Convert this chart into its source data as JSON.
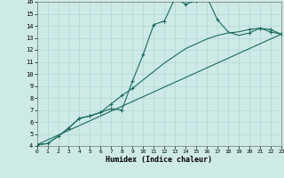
{
  "xlabel": "Humidex (Indice chaleur)",
  "bg_color": "#ceeae6",
  "line_color": "#1a6b5a",
  "xlim": [
    0,
    23
  ],
  "ylim": [
    4,
    16
  ],
  "xticks": [
    0,
    1,
    2,
    3,
    4,
    5,
    6,
    7,
    8,
    9,
    10,
    11,
    12,
    13,
    14,
    15,
    16,
    17,
    18,
    19,
    20,
    21,
    22,
    23
  ],
  "yticks": [
    4,
    5,
    6,
    7,
    8,
    9,
    10,
    11,
    12,
    13,
    14,
    15,
    16
  ],
  "curve1_x": [
    0,
    1,
    2,
    3,
    4,
    5,
    6,
    7,
    8,
    9,
    10,
    11,
    12,
    13,
    14,
    15,
    16,
    17,
    18,
    19,
    20,
    21,
    22,
    23
  ],
  "curve1_y": [
    4.1,
    4.2,
    4.8,
    5.5,
    6.3,
    6.5,
    6.8,
    7.1,
    7.0,
    9.4,
    11.6,
    14.1,
    14.4,
    16.3,
    15.8,
    16.1,
    16.4,
    14.5,
    13.5,
    13.2,
    13.4,
    13.8,
    13.5,
    13.3
  ],
  "curve1_marker_x": [
    0,
    1,
    2,
    3,
    4,
    5,
    6,
    7,
    8,
    9,
    10,
    11,
    12,
    13,
    14,
    15,
    16,
    17,
    20,
    21,
    22,
    23
  ],
  "curve1_marker_y": [
    4.1,
    4.2,
    4.8,
    5.5,
    6.3,
    6.5,
    6.8,
    7.1,
    7.0,
    9.4,
    11.6,
    14.1,
    14.4,
    16.3,
    15.8,
    16.1,
    16.4,
    14.5,
    13.4,
    13.8,
    13.5,
    13.3
  ],
  "curve2_x": [
    0,
    1,
    2,
    3,
    4,
    5,
    6,
    7,
    8,
    9,
    10,
    11,
    12,
    13,
    14,
    15,
    16,
    17,
    18,
    19,
    20,
    21,
    22,
    23
  ],
  "curve2_y": [
    4.1,
    4.2,
    4.8,
    5.5,
    6.3,
    6.5,
    6.8,
    7.5,
    8.2,
    8.8,
    9.5,
    10.2,
    10.9,
    11.5,
    12.1,
    12.5,
    12.9,
    13.2,
    13.4,
    13.5,
    13.7,
    13.8,
    13.7,
    13.3
  ],
  "curve2_marker_x": [
    3,
    4,
    5,
    6,
    7,
    8,
    9,
    20,
    21,
    22,
    23
  ],
  "curve2_marker_y": [
    5.5,
    6.3,
    6.5,
    6.8,
    7.5,
    8.2,
    8.8,
    13.7,
    13.8,
    13.7,
    13.3
  ],
  "curve3_x": [
    0,
    23
  ],
  "curve3_y": [
    4.1,
    13.3
  ],
  "grid_color": "#afd8d3",
  "marker": "+"
}
